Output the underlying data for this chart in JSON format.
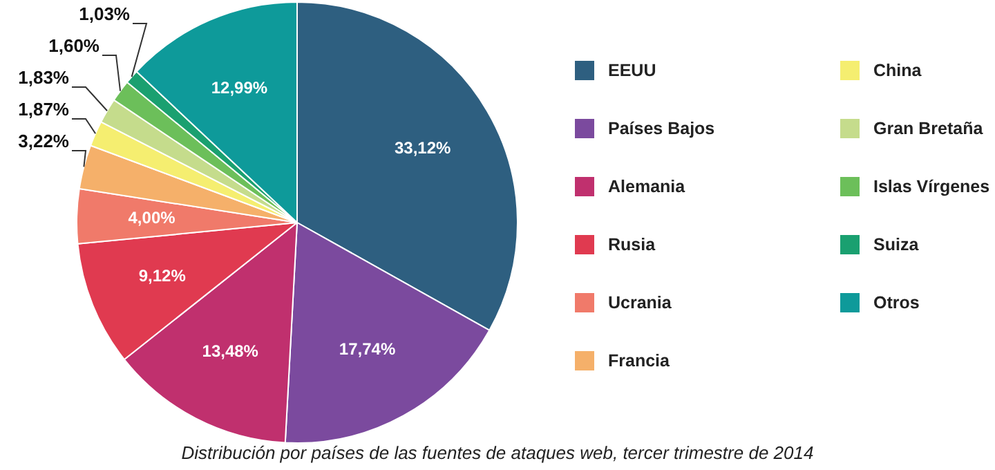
{
  "chart_data": {
    "type": "pie",
    "categories": [
      "EEUU",
      "Países Bajos",
      "Alemania",
      "Rusia",
      "Ucrania",
      "Francia",
      "China",
      "Gran Bretaña",
      "Islas Vírgenes",
      "Suiza",
      "Otros"
    ],
    "values": [
      33.12,
      17.74,
      13.48,
      9.12,
      4.0,
      3.22,
      1.87,
      1.83,
      1.6,
      1.03,
      12.99
    ],
    "value_labels": [
      "33,12%",
      "17,74%",
      "13,48%",
      "9,12%",
      "4,00%",
      "3,22%",
      "1,87%",
      "1,83%",
      "1,60%",
      "1,03%",
      "12,99%"
    ],
    "colors": [
      "#2e5f80",
      "#7b4a9e",
      "#c0306e",
      "#e03a50",
      "#f07a6a",
      "#f5b06a",
      "#f5ee70",
      "#c5dc8c",
      "#6cbf5a",
      "#1aa070",
      "#0e9a9a"
    ],
    "legend": "right",
    "annotations": [
      "Distribución por países de las fuentes de ataques web, tercer trimestre de 2014"
    ]
  }
}
